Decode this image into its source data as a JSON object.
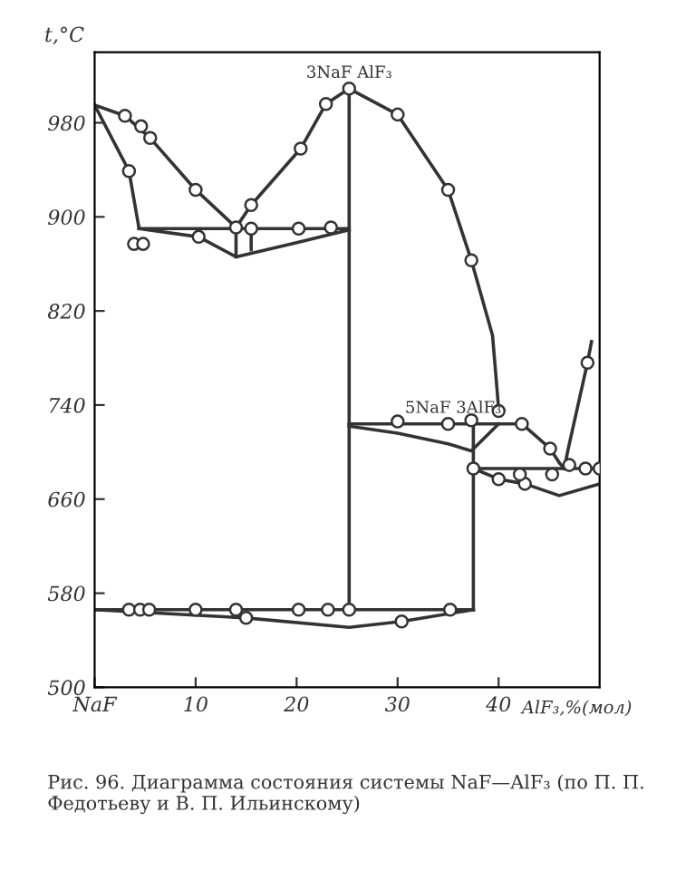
{
  "chart_data": {
    "type": "line",
    "xlabel": "AlF₃,%(мол)",
    "ylabel": "t,°C",
    "xlim": [
      0,
      50
    ],
    "ylim": [
      500,
      1040
    ],
    "xticks": [
      {
        "value": 0,
        "label": "NaF"
      },
      10,
      20,
      30,
      40
    ],
    "yticks": [
      500,
      580,
      660,
      740,
      820,
      900,
      980
    ],
    "grid": false,
    "legend": false,
    "series": [
      {
        "color": "#333333",
        "x": [
          0,
          3,
          5.5,
          10,
          14
        ],
        "values": [
          995,
          986,
          967,
          923,
          891
        ]
      },
      {
        "color": "#333333",
        "x": [
          0,
          3.4,
          4.4
        ],
        "values": [
          995,
          939,
          890
        ]
      },
      {
        "color": "#333333",
        "x": [
          4.4,
          25.2
        ],
        "values": [
          890,
          890
        ]
      },
      {
        "color": "#333333",
        "x": [
          4.4,
          10.3,
          14,
          20,
          25.2
        ],
        "values": [
          890,
          883,
          866,
          878,
          889
        ]
      },
      {
        "color": "#333333",
        "x": [
          14,
          14
        ],
        "values": [
          891,
          866
        ]
      },
      {
        "color": "#333333",
        "x": [
          15.5,
          15.5
        ],
        "values": [
          890,
          872
        ]
      },
      {
        "color": "#333333",
        "x": [
          14,
          15.5,
          20.4,
          22.9,
          25.2,
          30,
          35,
          37.3,
          39.4,
          40
        ],
        "values": [
          891,
          910,
          958,
          996,
          1009,
          987,
          923,
          863,
          799,
          737
        ]
      },
      {
        "color": "#333333",
        "x": [
          25.2,
          25.2
        ],
        "values": [
          1009,
          566
        ]
      },
      {
        "color": "#333333",
        "x": [
          25.2,
          42.3
        ],
        "values": [
          724,
          724
        ]
      },
      {
        "color": "#333333",
        "x": [
          25.2,
          30,
          35,
          37.3,
          40
        ],
        "values": [
          722,
          716,
          707,
          701,
          724
        ]
      },
      {
        "color": "#333333",
        "x": [
          37.5,
          37.5
        ],
        "values": [
          727,
          566
        ]
      },
      {
        "color": "#333333",
        "x": [
          42.3,
          45.1,
          46,
          46.5
        ],
        "values": [
          724,
          703,
          691,
          686
        ]
      },
      {
        "color": "#333333",
        "x": [
          37.5,
          50
        ],
        "values": [
          686,
          686
        ]
      },
      {
        "color": "#333333",
        "x": [
          37.5,
          40,
          42.6,
          46,
          50
        ],
        "values": [
          686,
          677,
          673,
          663,
          673
        ]
      },
      {
        "color": "#333333",
        "x": [
          46.5,
          46.9,
          48.8,
          49.2
        ],
        "values": [
          686,
          703,
          776,
          794
        ]
      },
      {
        "color": "#333333",
        "x": [
          0,
          37.5
        ],
        "values": [
          566,
          566
        ]
      },
      {
        "color": "#333333",
        "x": [
          0,
          15,
          25.2,
          30.4,
          37.5
        ],
        "values": [
          566,
          559,
          551,
          556,
          566
        ]
      },
      {
        "type": "scatter",
        "color": "#333333",
        "marker": "circle",
        "x": [
          3,
          4.6,
          5.5,
          10,
          14,
          15.5,
          20.2,
          23.4,
          10.3,
          3.4,
          3.9,
          4.8,
          15.5,
          20.4,
          22.9,
          25.2,
          30,
          35,
          37.3,
          30,
          35,
          37.3,
          40,
          42.3,
          45.1,
          37.5,
          40,
          42.6,
          42.1,
          45.3,
          47,
          48.6,
          50,
          48.8,
          3.4,
          4.5,
          5.4,
          10,
          14,
          15,
          20.2,
          23.1,
          25.2,
          30.4,
          35.2
        ],
        "values": [
          986,
          977,
          967,
          923,
          891,
          890,
          890,
          891,
          883,
          939,
          877,
          877,
          910,
          958,
          996,
          1009,
          987,
          923,
          863,
          726,
          724,
          727,
          735,
          724,
          703,
          686,
          677,
          673,
          681,
          681,
          689,
          686,
          686,
          776,
          566,
          566,
          566,
          566,
          566,
          559,
          566,
          566,
          566,
          556,
          566
        ]
      }
    ],
    "annotations": [
      {
        "text": "3NaF AlF₃",
        "x": 25.2,
        "y": 1009
      },
      {
        "text": "5NaF 3AlF₃",
        "x": 35.5,
        "y": 724
      },
      "Рис. 96. Диаграмма состояния системы NaF—AlF₃ (по П. П. Федотьеву и В. П. Ильинскому)"
    ]
  }
}
